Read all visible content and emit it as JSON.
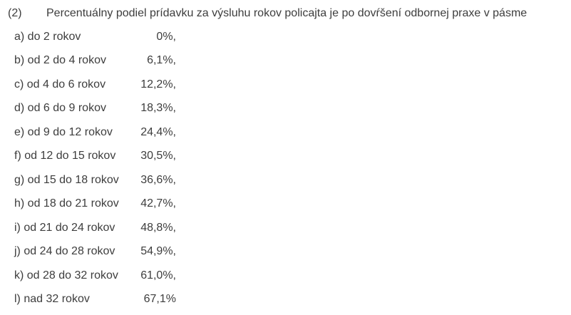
{
  "document": {
    "paragraph_number": "(2)",
    "paragraph_text": "Percentuálny podiel prídavku za výsluhu rokov policajta je po dovŕšení odbornej praxe v pásme",
    "rows": [
      {
        "label": "a) do 2 rokov",
        "value": "0%,"
      },
      {
        "label": "b) od 2 do 4 rokov",
        "value": "6,1%,"
      },
      {
        "label": "c) od 4 do 6 rokov",
        "value": "12,2%,"
      },
      {
        "label": "d) od 6 do 9 rokov",
        "value": "18,3%,"
      },
      {
        "label": "e) od 9 do 12 rokov",
        "value": "24,4%,"
      },
      {
        "label": "f) od 12 do 15 rokov",
        "value": "30,5%,"
      },
      {
        "label": "g) od 15 do 18 rokov",
        "value": "36,6%,"
      },
      {
        "label": "h) od 18 do 21 rokov",
        "value": "42,7%,"
      },
      {
        "label": "i) od 21 do 24 rokov",
        "value": "48,8%,"
      },
      {
        "label": "j) od 24 do 28 rokov",
        "value": "54,9%,"
      },
      {
        "label": "k) od 28 do 32 rokov",
        "value": "61,0%,"
      },
      {
        "label": "l) nad 32 rokov",
        "value": "67,1%"
      }
    ]
  }
}
